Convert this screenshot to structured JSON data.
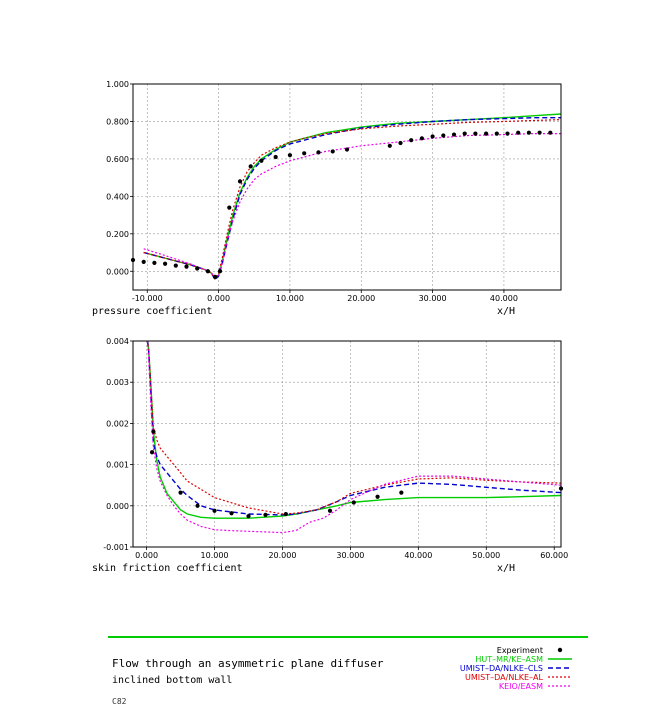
{
  "chart_data": [
    {
      "type": "line",
      "xlabel": "x/H",
      "ylabel": "pressure coefficient",
      "xlim": [
        -12,
        48
      ],
      "ylim": [
        -0.1,
        1.0
      ],
      "xticks": [
        "-10.000",
        "0.000",
        "10.000",
        "20.000",
        "30.000",
        "40.000"
      ],
      "yticks": [
        "0.000",
        "0.200",
        "0.400",
        "0.600",
        "0.800",
        "1.000"
      ],
      "grid": true,
      "experiment": {
        "x": [
          -12.0,
          -10.5,
          -9,
          -7.5,
          -6,
          -4.5,
          -3,
          -1.5,
          -0.5,
          0.2,
          1.5,
          3,
          4.5,
          6,
          8,
          10,
          12,
          14,
          16,
          18,
          24,
          25.5,
          27,
          28.5,
          30,
          31.5,
          33,
          34.5,
          36,
          37.5,
          39,
          40.5,
          42,
          43.5,
          45,
          46.5
        ],
        "y": [
          0.06,
          0.05,
          0.045,
          0.04,
          0.03,
          0.025,
          0.015,
          0.0,
          -0.03,
          0.0,
          0.34,
          0.48,
          0.56,
          0.59,
          0.61,
          0.62,
          0.63,
          0.635,
          0.64,
          0.65,
          0.67,
          0.685,
          0.7,
          0.71,
          0.72,
          0.725,
          0.73,
          0.735,
          0.735,
          0.735,
          0.735,
          0.735,
          0.74,
          0.74,
          0.74,
          0.74
        ]
      },
      "series": [
        {
          "x": [
            -10.5,
            -8,
            -6,
            -4,
            -2,
            -1,
            -0.5,
            0,
            0.5,
            1,
            1.5,
            2,
            3,
            4,
            5,
            6,
            8,
            10,
            12,
            15,
            20,
            25,
            30,
            35,
            40,
            44,
            48
          ],
          "y": [
            0.1,
            0.075,
            0.055,
            0.035,
            0.01,
            -0.01,
            -0.04,
            -0.02,
            0.05,
            0.14,
            0.22,
            0.3,
            0.42,
            0.5,
            0.56,
            0.6,
            0.65,
            0.69,
            0.71,
            0.74,
            0.77,
            0.79,
            0.8,
            0.81,
            0.82,
            0.83,
            0.84
          ]
        },
        {
          "x": [
            -10.5,
            -8,
            -6,
            -4,
            -2,
            -1,
            -0.5,
            0,
            0.5,
            1,
            1.5,
            2,
            3,
            4,
            5,
            6,
            8,
            10,
            12,
            15,
            20,
            25,
            30,
            35,
            40,
            44,
            48
          ],
          "y": [
            0.1,
            0.075,
            0.055,
            0.035,
            0.01,
            -0.01,
            -0.045,
            -0.025,
            0.04,
            0.12,
            0.2,
            0.28,
            0.41,
            0.49,
            0.55,
            0.59,
            0.645,
            0.68,
            0.7,
            0.73,
            0.765,
            0.785,
            0.8,
            0.81,
            0.815,
            0.82,
            0.82
          ]
        },
        {
          "x": [
            -10.5,
            -8,
            -6,
            -4,
            -2,
            -1,
            -0.5,
            0,
            0.5,
            1,
            1.5,
            2,
            3,
            4,
            5,
            6,
            8,
            10,
            12,
            15,
            20,
            25,
            30,
            35,
            40,
            44,
            48
          ],
          "y": [
            0.1,
            0.075,
            0.055,
            0.035,
            0.01,
            -0.01,
            -0.04,
            -0.01,
            0.07,
            0.16,
            0.25,
            0.33,
            0.45,
            0.53,
            0.58,
            0.62,
            0.66,
            0.69,
            0.71,
            0.735,
            0.76,
            0.775,
            0.785,
            0.795,
            0.8,
            0.805,
            0.81
          ]
        },
        {
          "x": [
            -10.5,
            -8,
            -6,
            -4,
            -2,
            -1,
            -0.5,
            0,
            0.5,
            1,
            1.5,
            2,
            3,
            4,
            5,
            6,
            8,
            10,
            12,
            15,
            20,
            25,
            30,
            35,
            40,
            44,
            48
          ],
          "y": [
            0.12,
            0.09,
            0.065,
            0.04,
            0.01,
            -0.01,
            -0.03,
            -0.02,
            0.04,
            0.12,
            0.2,
            0.27,
            0.37,
            0.44,
            0.49,
            0.52,
            0.56,
            0.59,
            0.61,
            0.64,
            0.67,
            0.69,
            0.71,
            0.725,
            0.73,
            0.735,
            0.735
          ]
        }
      ]
    },
    {
      "type": "line",
      "xlabel": "x/H",
      "ylabel": "skin friction coefficient",
      "xlim": [
        -2,
        61
      ],
      "ylim": [
        -0.001,
        0.004
      ],
      "xticks": [
        "0.000",
        "10.000",
        "20.000",
        "30.000",
        "40.000",
        "50.000",
        "60.000"
      ],
      "yticks": [
        "-0.001",
        "0.000",
        "0.001",
        "0.002",
        "0.003",
        "0.004"
      ],
      "grid": true,
      "experiment": {
        "x": [
          0.8,
          1.0,
          5,
          7.5,
          10,
          12.5,
          15,
          17.5,
          20.5,
          27,
          30.5,
          34,
          37.5,
          61
        ],
        "y": [
          0.0013,
          0.0018,
          0.00032,
          0.0,
          -0.00012,
          -0.00018,
          -0.00025,
          -0.00022,
          -0.0002,
          -0.00012,
          8e-05,
          0.00022,
          0.00032,
          0.00042
        ]
      },
      "series": [
        {
          "x": [
            0,
            0.3,
            0.6,
            1,
            1.5,
            2,
            3,
            4,
            5,
            6,
            8,
            10,
            15,
            20,
            22,
            25,
            28,
            30,
            35,
            40,
            45,
            50,
            55,
            61
          ],
          "y": [
            0.0042,
            0.0038,
            0.003,
            0.0018,
            0.0011,
            0.0007,
            0.0003,
            0.0001,
            -0.0001,
            -0.0002,
            -0.00028,
            -0.0003,
            -0.0003,
            -0.00025,
            -0.0002,
            -0.0001,
            0.0,
            8e-05,
            0.00015,
            0.0002,
            0.0002,
            0.0002,
            0.00022,
            0.00025
          ]
        },
        {
          "x": [
            0,
            0.3,
            0.6,
            1,
            1.5,
            2,
            3,
            4,
            5,
            6,
            8,
            10,
            15,
            20,
            22,
            25,
            28,
            30,
            35,
            40,
            45,
            50,
            55,
            61
          ],
          "y": [
            0.0042,
            0.0038,
            0.0028,
            0.0015,
            0.0012,
            0.001,
            0.0008,
            0.0006,
            0.0004,
            0.00025,
            0.0,
            -0.0001,
            -0.0002,
            -0.00022,
            -0.0002,
            -0.0001,
            0.0001,
            0.00025,
            0.00045,
            0.00055,
            0.00052,
            0.00045,
            0.00038,
            0.00032
          ]
        },
        {
          "x": [
            0,
            0.3,
            0.6,
            1,
            1.5,
            2,
            3,
            4,
            5,
            6,
            8,
            10,
            15,
            20,
            22,
            25,
            28,
            30,
            35,
            40,
            45,
            50,
            55,
            61
          ],
          "y": [
            0.0042,
            0.0038,
            0.003,
            0.0019,
            0.0016,
            0.0014,
            0.0012,
            0.001,
            0.0008,
            0.0006,
            0.0004,
            0.0002,
            -5e-05,
            -0.0002,
            -0.00018,
            -0.0001,
            0.0001,
            0.0003,
            0.0005,
            0.00065,
            0.00068,
            0.00062,
            0.00058,
            0.00055
          ]
        },
        {
          "x": [
            0,
            0.3,
            0.6,
            1,
            1.5,
            2,
            3,
            4,
            5,
            6,
            8,
            10,
            12,
            15,
            20,
            22,
            23,
            24,
            26,
            28,
            30,
            32,
            35,
            40,
            45,
            50,
            55,
            61
          ],
          "y": [
            0.0042,
            0.0036,
            0.0025,
            0.0014,
            0.0009,
            0.0006,
            0.00025,
            0.0,
            -0.0002,
            -0.00035,
            -0.0005,
            -0.00058,
            -0.0006,
            -0.00062,
            -0.00065,
            -0.0006,
            -0.0005,
            -0.0004,
            -0.0003,
            -0.0001,
            0.00015,
            0.0003,
            0.00052,
            0.00072,
            0.00072,
            0.00065,
            0.00058,
            0.0005
          ]
        }
      ]
    }
  ],
  "legend": {
    "experiment_label": "Experiment",
    "items": [
      {
        "name": "HUT–MR/KE–ASM",
        "color": "#00cc00",
        "dash": "solid"
      },
      {
        "name": "UMIST–DA/NLKE–CLS",
        "color": "#0000cc",
        "dash": "dashed"
      },
      {
        "name": "UMIST–DA/NLKE–AL",
        "color": "#dd0000",
        "dash": "dotted"
      },
      {
        "name": "KEIO/EASM",
        "color": "#ee00ee",
        "dash": "dotted"
      }
    ]
  },
  "footer": {
    "title": "Flow through an asymmetric plane diffuser",
    "subtitle": "inclined bottom wall",
    "code": "C82",
    "rule_color": "#00cc00"
  }
}
